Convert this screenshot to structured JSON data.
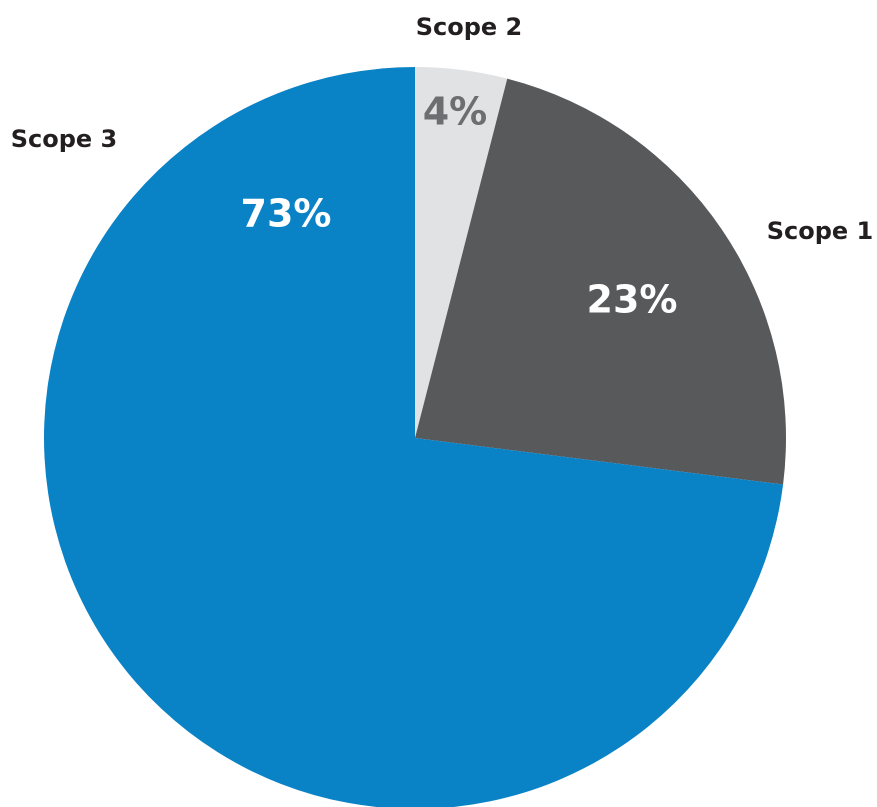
{
  "chart_data": {
    "type": "pie",
    "categories": [
      "Scope 2",
      "Scope 1",
      "Scope 3"
    ],
    "values": [
      4,
      23,
      73
    ],
    "value_labels": [
      "4%",
      "23%",
      "73%"
    ],
    "colors": [
      "#e1e2e4",
      "#58595b",
      "#0a82c6"
    ],
    "value_label_colors": [
      "#6d6e71",
      "#ffffff",
      "#ffffff"
    ]
  }
}
